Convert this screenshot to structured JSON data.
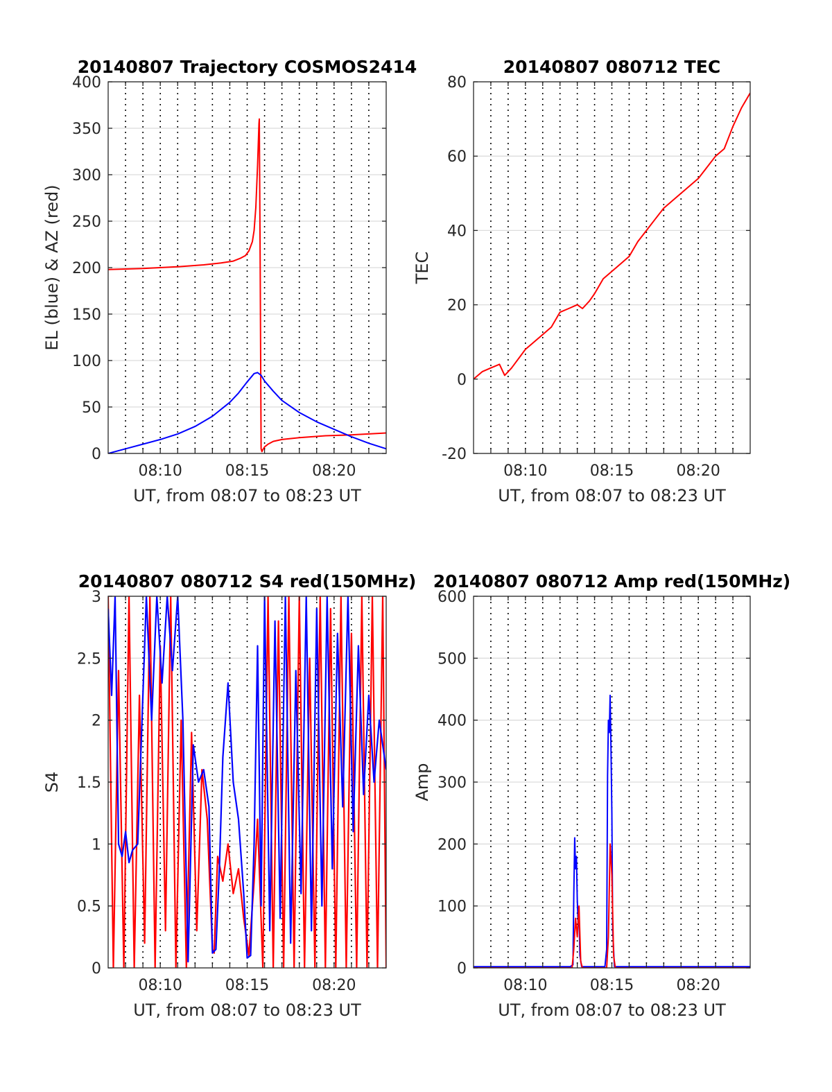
{
  "chart_data": [
    {
      "type": "line",
      "title": "20140807 Trajectory COSMOS2414",
      "xlabel": "UT, from 08:07 to 08:23 UT",
      "ylabel": "EL (blue) & AZ (red)",
      "xlim": [
        7.0,
        23.0
      ],
      "ylim": [
        0,
        400
      ],
      "yticks": [
        0,
        50,
        100,
        150,
        200,
        250,
        300,
        350,
        400
      ],
      "xtick_labels": [
        "08:10",
        "08:15",
        "08:20"
      ],
      "grid": true,
      "series": [
        {
          "color": "#ff0000",
          "x": [
            7.0,
            9.0,
            11.0,
            12.5,
            13.5,
            14.2,
            14.6,
            14.9,
            15.1,
            15.3,
            15.4,
            15.5,
            15.6,
            15.68,
            15.7,
            15.75,
            15.8,
            15.85,
            15.9,
            16.0,
            16.2,
            16.5,
            17.0,
            18.0,
            19.5,
            21.0,
            23.0
          ],
          "y": [
            198,
            199,
            201,
            203,
            205,
            207,
            210,
            213,
            218,
            228,
            240,
            265,
            310,
            355,
            360,
            200,
            5,
            2,
            4,
            7,
            10,
            13,
            15,
            17,
            19,
            20,
            22
          ]
        },
        {
          "color": "#0000ff",
          "x": [
            7.0,
            8.0,
            9.0,
            10.0,
            11.0,
            12.0,
            13.0,
            14.0,
            14.5,
            15.0,
            15.4,
            15.6,
            15.8,
            16.0,
            16.5,
            17.0,
            18.0,
            19.0,
            20.0,
            21.0,
            22.0,
            23.0
          ],
          "y": [
            0,
            5,
            10,
            15,
            21,
            29,
            40,
            55,
            65,
            77,
            86,
            87,
            84,
            78,
            67,
            57,
            44,
            34,
            26,
            18,
            11,
            5
          ]
        }
      ]
    },
    {
      "type": "line",
      "title": "20140807 080712 TEC",
      "xlabel": "UT, from 08:07 to 08:23 UT",
      "ylabel": "TEC",
      "xlim": [
        7.0,
        23.0
      ],
      "ylim": [
        -20,
        80
      ],
      "yticks": [
        -20,
        0,
        20,
        40,
        60,
        80
      ],
      "xtick_labels": [
        "08:10",
        "08:15",
        "08:20"
      ],
      "grid": true,
      "series": [
        {
          "color": "#ff0000",
          "x": [
            7.0,
            7.5,
            8.0,
            8.5,
            8.8,
            9.2,
            10.0,
            11.0,
            11.5,
            12.0,
            12.5,
            13.0,
            13.3,
            13.7,
            14.0,
            14.5,
            15.0,
            15.5,
            16.0,
            16.5,
            17.0,
            17.5,
            18.0,
            18.5,
            19.0,
            19.5,
            20.0,
            20.5,
            21.0,
            21.5,
            22.0,
            22.5,
            23.0
          ],
          "y": [
            0,
            2,
            3,
            4,
            1,
            3,
            8,
            12,
            14,
            18,
            19,
            20,
            19,
            21,
            23,
            27,
            29,
            31,
            33,
            37,
            40,
            43,
            46,
            48,
            50,
            52,
            54,
            57,
            60,
            62,
            68,
            73,
            77
          ]
        }
      ]
    },
    {
      "type": "line",
      "title": "20140807 080712 S4 red(150MHz)",
      "xlabel": "UT, from 08:07 to 08:23 UT",
      "ylabel": "S4",
      "xlim": [
        7.0,
        23.0
      ],
      "ylim": [
        0,
        3
      ],
      "yticks": [
        0,
        0.5,
        1,
        1.5,
        2,
        2.5,
        3
      ],
      "xtick_labels": [
        "08:10",
        "08:15",
        "08:20"
      ],
      "grid": true,
      "series": [
        {
          "color": "#ff0000",
          "x": [
            7.0,
            7.3,
            7.6,
            7.9,
            8.2,
            8.5,
            8.8,
            9.1,
            9.4,
            9.7,
            10.0,
            10.3,
            10.6,
            10.9,
            11.2,
            11.5,
            11.8,
            12.1,
            12.4,
            12.7,
            13.0,
            13.1,
            13.3,
            13.6,
            13.9,
            14.2,
            14.5,
            14.8,
            15.1,
            15.4,
            15.6,
            15.9,
            16.2,
            16.5,
            16.8,
            17.1,
            17.4,
            17.7,
            18.0,
            18.3,
            18.6,
            18.9,
            19.2,
            19.5,
            19.8,
            20.1,
            20.4,
            20.7,
            21.0,
            21.3,
            21.6,
            21.9,
            22.2,
            22.5,
            22.8,
            23.0
          ],
          "y": [
            3,
            0,
            2.4,
            0,
            3,
            0,
            2.2,
            0.2,
            3,
            0,
            2.6,
            0.3,
            3,
            0,
            2.0,
            0,
            1.9,
            0.3,
            1.6,
            1.2,
            0.15,
            0.12,
            0.9,
            0.7,
            1.0,
            0.6,
            0.8,
            0.4,
            0.1,
            0.7,
            1.2,
            0,
            3,
            0,
            2.8,
            0,
            3,
            0,
            3,
            0,
            2.5,
            0,
            3,
            0,
            2.9,
            0,
            3,
            0,
            2.7,
            0,
            3,
            0,
            3,
            0,
            3,
            0
          ]
        },
        {
          "color": "#0000ff",
          "x": [
            7.0,
            7.2,
            7.4,
            7.6,
            7.8,
            8.0,
            8.2,
            8.4,
            8.7,
            9.0,
            9.2,
            9.5,
            9.8,
            10.1,
            10.4,
            10.7,
            11.0,
            11.3,
            11.6,
            11.9,
            12.2,
            12.5,
            12.8,
            13.0,
            13.2,
            13.4,
            13.6,
            13.9,
            14.2,
            14.5,
            14.8,
            15.0,
            15.2,
            15.4,
            15.6,
            15.8,
            16.0,
            16.3,
            16.6,
            16.9,
            17.2,
            17.5,
            17.8,
            18.1,
            18.4,
            18.7,
            19.0,
            19.3,
            19.6,
            19.9,
            20.2,
            20.5,
            20.8,
            21.1,
            21.4,
            21.7,
            22.0,
            22.3,
            22.6,
            23.0
          ],
          "y": [
            2.9,
            2.2,
            3,
            1.0,
            0.9,
            1.1,
            0.85,
            0.95,
            1.0,
            2.2,
            3,
            2.0,
            3,
            2.3,
            3,
            2.4,
            3,
            2.0,
            0.05,
            1.8,
            1.5,
            1.6,
            1.3,
            0.12,
            0.15,
            0.8,
            1.7,
            2.3,
            1.5,
            1.2,
            0.6,
            0.08,
            0.1,
            1.0,
            2.6,
            0.5,
            3,
            0.3,
            2.8,
            0.4,
            3,
            0.2,
            2.4,
            0.6,
            3,
            0.3,
            2.9,
            0.5,
            3,
            0.8,
            2.7,
            1.3,
            3,
            1.1,
            2.6,
            1.4,
            2.2,
            1.5,
            2.0,
            1.6
          ]
        }
      ]
    },
    {
      "type": "line",
      "title": "20140807 080712 Amp red(150MHz)",
      "xlabel": "UT, from 08:07 to 08:23 UT",
      "ylabel": "Amp",
      "xlim": [
        7.0,
        23.0
      ],
      "ylim": [
        0,
        600
      ],
      "yticks": [
        0,
        100,
        200,
        300,
        400,
        500,
        600
      ],
      "xtick_labels": [
        "08:10",
        "08:15",
        "08:20"
      ],
      "grid": true,
      "series": [
        {
          "color": "#0000ff",
          "x": [
            7.0,
            12.6,
            12.75,
            12.8,
            12.85,
            12.9,
            12.95,
            13.0,
            13.05,
            13.1,
            13.15,
            13.25,
            14.6,
            14.7,
            14.75,
            14.8,
            14.85,
            14.9,
            14.95,
            15.0,
            15.05,
            15.15,
            23.0
          ],
          "y": [
            2,
            2,
            5,
            120,
            210,
            160,
            180,
            110,
            70,
            90,
            20,
            2,
            2,
            30,
            310,
            400,
            380,
            440,
            350,
            250,
            60,
            2,
            2
          ]
        },
        {
          "color": "#ff0000",
          "x": [
            7.0,
            12.7,
            12.8,
            12.9,
            13.0,
            13.1,
            13.2,
            13.3,
            14.7,
            14.8,
            14.9,
            15.0,
            15.1,
            15.2,
            23.0
          ],
          "y": [
            0,
            0,
            30,
            80,
            50,
            100,
            10,
            0,
            0,
            50,
            200,
            150,
            20,
            0,
            0
          ]
        }
      ]
    }
  ]
}
